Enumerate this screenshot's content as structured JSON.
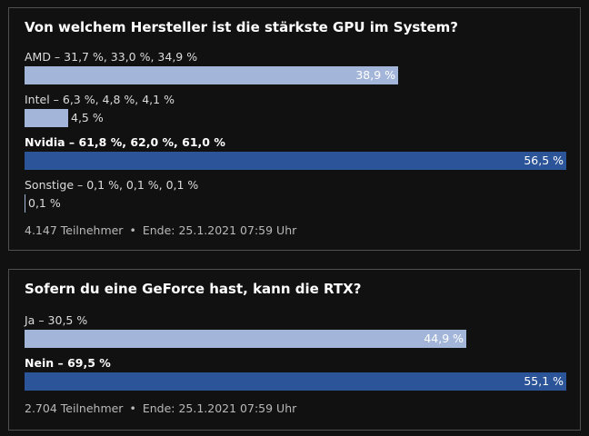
{
  "polls": [
    {
      "title": "Von welchem Hersteller ist die stärkste GPU im System?",
      "options": [
        {
          "label": "AMD – 31,7 %, 33,0 %, 34,9 %",
          "value_text": "38,9 %",
          "fraction": 0.689,
          "style": "light",
          "winner": false
        },
        {
          "label": "Intel – 6,3 %, 4,8 %, 4,1 %",
          "value_text": "4,5 %",
          "fraction": 0.08,
          "style": "light",
          "winner": false
        },
        {
          "label": "Nvidia – 61,8 %, 62,0 %, 61,0 %",
          "value_text": "56,5 %",
          "fraction": 1.0,
          "style": "dark",
          "winner": true
        },
        {
          "label": "Sonstige – 0,1 %, 0,1 %, 0,1 %",
          "value_text": "0,1 %",
          "fraction": 0.002,
          "style": "light",
          "winner": false
        }
      ],
      "participants": "4.147 Teilnehmer",
      "separator": "•",
      "end": "Ende: 25.1.2021 07:59 Uhr"
    },
    {
      "title": "Sofern du eine GeForce hast, kann die RTX?",
      "options": [
        {
          "label": "Ja – 30,5 %",
          "value_text": "44,9 %",
          "fraction": 0.815,
          "style": "light",
          "winner": false
        },
        {
          "label": "Nein – 69,5 %",
          "value_text": "55,1 %",
          "fraction": 1.0,
          "style": "dark",
          "winner": true
        }
      ],
      "participants": "2.704 Teilnehmer",
      "separator": "•",
      "end": "Ende: 25.1.2021 07:59 Uhr"
    }
  ],
  "colors": {
    "bar_light": "#a3b6da",
    "bar_dark": "#2b5499",
    "background": "#111111",
    "border": "#505050"
  }
}
